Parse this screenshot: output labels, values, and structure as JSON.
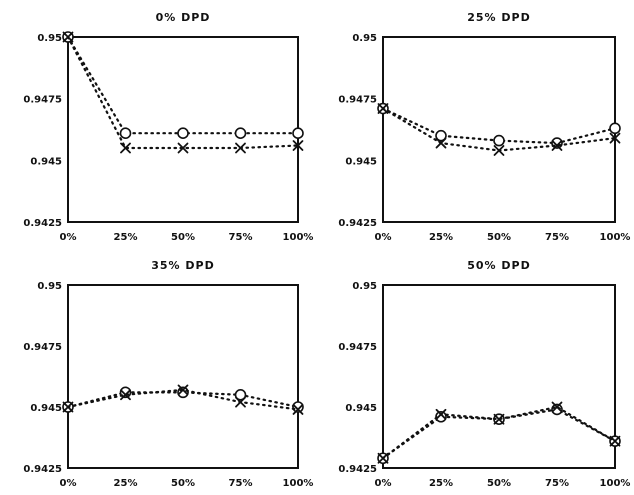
{
  "chart_data": [
    {
      "type": "line",
      "title": "0% DPD",
      "categories": [
        "0%",
        "25%",
        "50%",
        "75%",
        "100%"
      ],
      "ylim": [
        0.9425,
        0.95
      ],
      "yticks": [
        "0.95",
        "0.9475",
        "0.945",
        "0.9425"
      ],
      "grid": false,
      "series": [
        {
          "marker": "circle",
          "values": [
            0.95,
            0.9461,
            0.9461,
            0.9461,
            0.9461
          ]
        },
        {
          "marker": "x",
          "values": [
            0.95,
            0.9455,
            0.9455,
            0.9455,
            0.9456
          ]
        }
      ]
    },
    {
      "type": "line",
      "title": "25% DPD",
      "categories": [
        "0%",
        "25%",
        "50%",
        "75%",
        "100%"
      ],
      "ylim": [
        0.9425,
        0.95
      ],
      "yticks": [
        "0.95",
        "0.9475",
        "0.945",
        "0.9425"
      ],
      "grid": false,
      "series": [
        {
          "marker": "circle",
          "values": [
            0.9471,
            0.946,
            0.9458,
            0.9457,
            0.9463
          ]
        },
        {
          "marker": "x",
          "values": [
            0.9471,
            0.9457,
            0.9454,
            0.9456,
            0.9459
          ]
        }
      ]
    },
    {
      "type": "line",
      "title": "35% DPD",
      "categories": [
        "0%",
        "25%",
        "50%",
        "75%",
        "100%"
      ],
      "ylim": [
        0.9425,
        0.95
      ],
      "yticks": [
        "0.95",
        "0.9475",
        "0.945",
        "0.9425"
      ],
      "grid": false,
      "series": [
        {
          "marker": "circle",
          "values": [
            0.945,
            0.9456,
            0.9456,
            0.9455,
            0.945
          ]
        },
        {
          "marker": "x",
          "values": [
            0.945,
            0.9455,
            0.9457,
            0.9452,
            0.9449
          ]
        }
      ]
    },
    {
      "type": "line",
      "title": "50% DPD",
      "categories": [
        "0%",
        "25%",
        "50%",
        "75%",
        "100%"
      ],
      "ylim": [
        0.9425,
        0.95
      ],
      "yticks": [
        "0.95",
        "0.9475",
        "0.945",
        "0.9425"
      ],
      "grid": false,
      "series": [
        {
          "marker": "circle",
          "values": [
            0.9429,
            0.9446,
            0.9445,
            0.9449,
            0.9436
          ]
        },
        {
          "marker": "x",
          "values": [
            0.9429,
            0.9447,
            0.9445,
            0.945,
            0.9436
          ]
        }
      ]
    }
  ]
}
